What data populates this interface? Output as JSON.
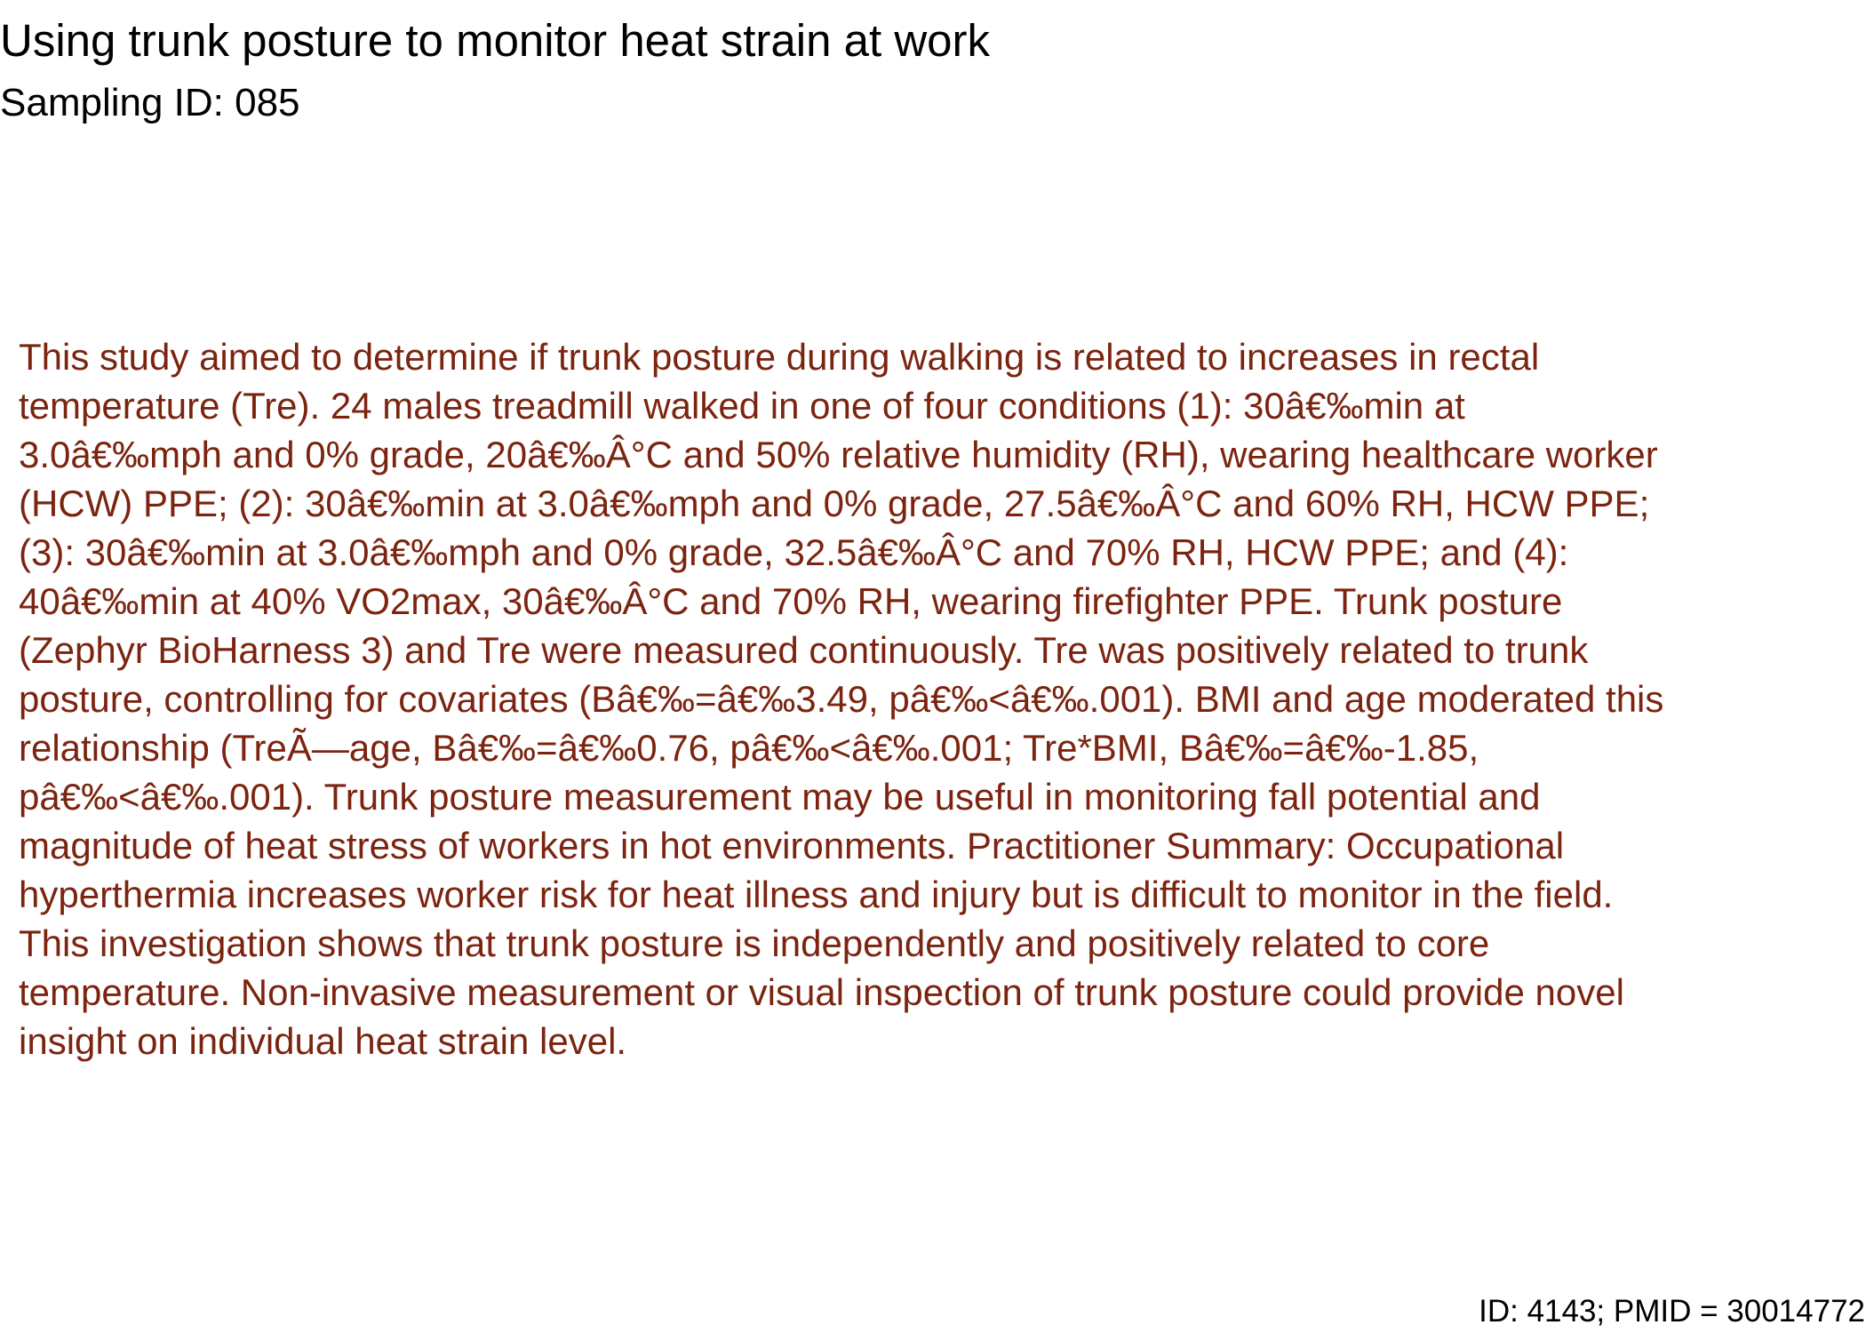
{
  "document": {
    "title": "Using trunk posture to monitor heat strain at work",
    "sampling_id": "Sampling ID: 085",
    "abstract": "This study aimed to determine if trunk posture during walking is related to increases in rectal\ntemperature (Tre). 24 males treadmill walked in one of four conditions (1): 30â€‰min at\n3.0â€‰mph and 0% grade, 20â€‰Â°C and 50% relative humidity (RH), wearing healthcare worker\n(HCW) PPE; (2): 30â€‰min at 3.0â€‰mph and 0% grade, 27.5â€‰Â°C and 60% RH, HCW PPE;\n(3): 30â€‰min at 3.0â€‰mph and 0% grade, 32.5â€‰Â°C and 70% RH, HCW PPE; and (4):\n40â€‰min at 40% VO2max, 30â€‰Â°C and 70% RH, wearing firefighter PPE. Trunk posture\n(Zephyr BioHarness 3) and Tre were measured continuously. Tre was positively related to trunk\nposture, controlling for covariates (Bâ€‰=â€‰3.49, pâ€‰<â€‰.001). BMI and age moderated this\nrelationship (TreÃ—age, Bâ€‰=â€‰0.76, pâ€‰<â€‰.001; Tre*BMI, Bâ€‰=â€‰-1.85,\npâ€‰<â€‰.001). Trunk posture measurement may be useful in monitoring fall potential and\nmagnitude of heat stress of workers in hot environments. Practitioner Summary: Occupational\nhyperthermia increases worker risk for heat illness and injury but is difficult to monitor in the field.\nThis investigation shows that trunk posture is independently and positively related to core\ntemperature. Non-invasive measurement or visual inspection of trunk posture could provide novel\ninsight on individual heat strain level.",
    "footer": "ID: 4143; PMID = 30014772"
  },
  "colors": {
    "title_text": "#000000",
    "abstract_text": "#7b2410",
    "background": "#ffffff"
  }
}
